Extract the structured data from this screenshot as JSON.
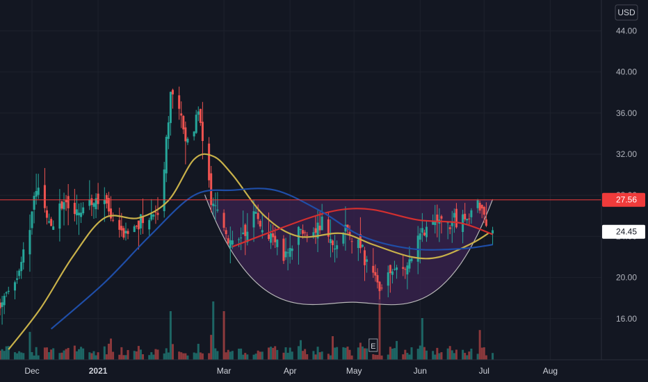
{
  "currency_label": "USD",
  "colors": {
    "background": "#131722",
    "grid": "#1e222d",
    "up": "#26a69a",
    "down": "#ef5350",
    "sma_short": "#c8b14a",
    "sma_mid": "#d32f2f",
    "sma_long": "#1f4ea8",
    "cup_fill": "#3b2350",
    "cup_stroke": "#b8b8b8",
    "resistance": "#ef3b3b",
    "axis_text": "#b2b5be"
  },
  "chart_data": {
    "type": "candlestick",
    "y_axis": {
      "min": 12.0,
      "max": 47.0,
      "ticks": [
        "44.00",
        "40.00",
        "36.00",
        "32.00",
        "28.00",
        "24.00",
        "20.00",
        "16.00"
      ],
      "position": "right",
      "scale": "linear"
    },
    "x_axis": {
      "start": "2020-11-16",
      "end": "2021-08-25",
      "tick_labels": [
        {
          "label": "Dec",
          "date": "2020-12-01",
          "bold": false
        },
        {
          "label": "2021",
          "date": "2021-01-01",
          "bold": true
        },
        {
          "label": "Mar",
          "date": "2021-03-01",
          "bold": false
        },
        {
          "label": "Apr",
          "date": "2021-04-01",
          "bold": false
        },
        {
          "label": "May",
          "date": "2021-05-01",
          "bold": false
        },
        {
          "label": "Jun",
          "date": "2021-06-01",
          "bold": false
        },
        {
          "label": "Jul",
          "date": "2021-07-01",
          "bold": false
        },
        {
          "label": "Aug",
          "date": "2021-08-01",
          "bold": false
        }
      ]
    },
    "price_path": [
      [
        "2020-11-16",
        17.5
      ],
      [
        "2020-11-20",
        18.5
      ],
      [
        "2020-11-25",
        20.5
      ],
      [
        "2020-11-30",
        25.0
      ],
      [
        "2020-12-03",
        29.0
      ],
      [
        "2020-12-07",
        26.5
      ],
      [
        "2020-12-11",
        25.0
      ],
      [
        "2020-12-16",
        27.5
      ],
      [
        "2020-12-21",
        26.0
      ],
      [
        "2020-12-28",
        27.8
      ],
      [
        "2021-01-04",
        28.0
      ],
      [
        "2021-01-08",
        25.5
      ],
      [
        "2021-01-13",
        24.0
      ],
      [
        "2021-01-19",
        25.2
      ],
      [
        "2021-01-25",
        26.0
      ],
      [
        "2021-01-29",
        26.5
      ],
      [
        "2021-02-01",
        31.0
      ],
      [
        "2021-02-04",
        38.0
      ],
      [
        "2021-02-08",
        36.0
      ],
      [
        "2021-02-12",
        33.0
      ],
      [
        "2021-02-17",
        36.5
      ],
      [
        "2021-02-20",
        31.0
      ],
      [
        "2021-02-24",
        27.0
      ],
      [
        "2021-03-01",
        25.0
      ],
      [
        "2021-03-05",
        23.0
      ],
      [
        "2021-03-10",
        24.0
      ],
      [
        "2021-03-15",
        26.5
      ],
      [
        "2021-03-19",
        25.0
      ],
      [
        "2021-03-24",
        24.0
      ],
      [
        "2021-03-29",
        22.0
      ],
      [
        "2021-04-01",
        22.5
      ],
      [
        "2021-04-06",
        24.5
      ],
      [
        "2021-04-12",
        24.0
      ],
      [
        "2021-04-16",
        25.5
      ],
      [
        "2021-04-21",
        23.0
      ],
      [
        "2021-04-26",
        24.5
      ],
      [
        "2021-04-30",
        24.0
      ],
      [
        "2021-05-05",
        22.5
      ],
      [
        "2021-05-10",
        20.0
      ],
      [
        "2021-05-13",
        19.0
      ],
      [
        "2021-05-18",
        20.5
      ],
      [
        "2021-05-24",
        21.0
      ],
      [
        "2021-05-28",
        22.0
      ],
      [
        "2021-06-02",
        24.5
      ],
      [
        "2021-06-08",
        25.2
      ],
      [
        "2021-06-14",
        25.0
      ],
      [
        "2021-06-18",
        25.5
      ],
      [
        "2021-06-24",
        26.0
      ],
      [
        "2021-06-28",
        27.2
      ],
      [
        "2021-07-01",
        26.0
      ],
      [
        "2021-07-05",
        24.45
      ]
    ],
    "volume_spikes": [
      {
        "date": "2021-02-04",
        "rel": 0.35
      },
      {
        "date": "2021-02-24",
        "rel": 0.42
      },
      {
        "date": "2021-03-01",
        "rel": 0.35
      },
      {
        "date": "2021-05-13",
        "rel": 0.55
      },
      {
        "date": "2021-06-02",
        "rel": 0.3
      }
    ],
    "moving_averages": [
      {
        "key": "sma_short",
        "points": [
          [
            "2020-11-20",
            13.0
          ],
          [
            "2020-12-05",
            17.0
          ],
          [
            "2020-12-20",
            22.0
          ],
          [
            "2021-01-04",
            25.8
          ],
          [
            "2021-01-20",
            25.8
          ],
          [
            "2021-02-03",
            27.5
          ],
          [
            "2021-02-15",
            31.5
          ],
          [
            "2021-02-24",
            31.8
          ],
          [
            "2021-03-05",
            30.0
          ],
          [
            "2021-03-20",
            26.0
          ],
          [
            "2021-04-05",
            24.0
          ],
          [
            "2021-04-25",
            24.3
          ],
          [
            "2021-05-10",
            23.2
          ],
          [
            "2021-05-28",
            22.0
          ],
          [
            "2021-06-10",
            22.0
          ],
          [
            "2021-06-25",
            23.3
          ],
          [
            "2021-07-03",
            24.3
          ]
        ]
      },
      {
        "key": "sma_mid",
        "points": [
          [
            "2021-03-05",
            23.0
          ],
          [
            "2021-03-20",
            24.2
          ],
          [
            "2021-04-10",
            25.8
          ],
          [
            "2021-04-25",
            26.6
          ],
          [
            "2021-05-10",
            26.6
          ],
          [
            "2021-05-31",
            25.6
          ],
          [
            "2021-06-20",
            25.3
          ],
          [
            "2021-07-05",
            24.2
          ]
        ]
      },
      {
        "key": "sma_long",
        "points": [
          [
            "2020-12-10",
            15.0
          ],
          [
            "2021-01-04",
            19.5
          ],
          [
            "2021-01-25",
            24.0
          ],
          [
            "2021-02-15",
            28.0
          ],
          [
            "2021-03-05",
            28.5
          ],
          [
            "2021-03-25",
            28.5
          ],
          [
            "2021-04-15",
            26.5
          ],
          [
            "2021-05-05",
            24.0
          ],
          [
            "2021-05-28",
            22.8
          ],
          [
            "2021-06-20",
            22.8
          ],
          [
            "2021-07-05",
            23.2
          ]
        ]
      }
    ],
    "cup": {
      "start": "2021-02-20",
      "bottom_date": "2021-04-30",
      "bottom_price": 17.6,
      "end": "2021-07-05",
      "rim_price": 27.56
    },
    "resistance_price": 27.56,
    "price_labels": [
      {
        "value": "27.56",
        "price": 27.56,
        "bg": "#ef3b3b"
      },
      {
        "value": "24.45",
        "price": 24.45,
        "bg": "#ffffff"
      }
    ],
    "earnings_marker": {
      "label": "E",
      "date": "2021-05-10"
    }
  }
}
